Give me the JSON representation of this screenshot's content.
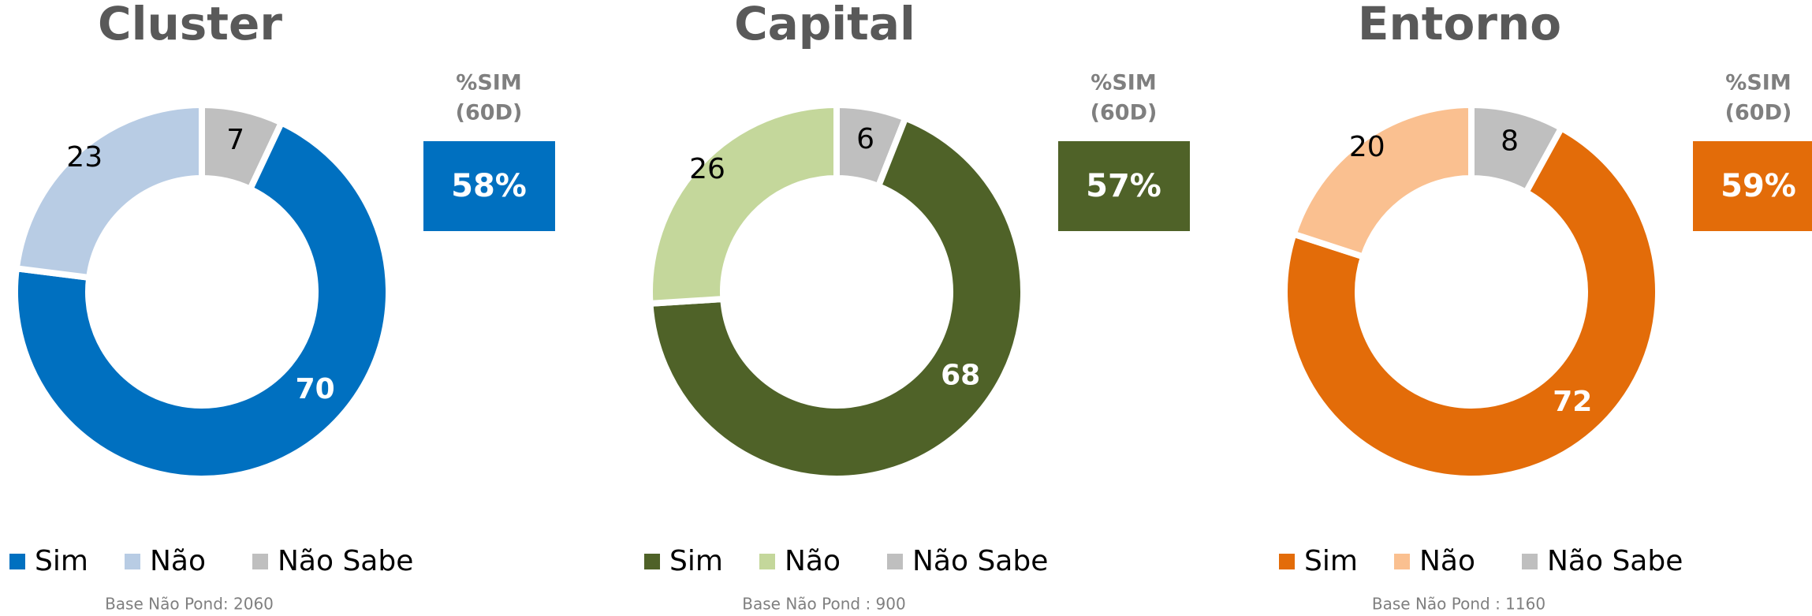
{
  "chart_data": [
    {
      "type": "donut",
      "title": "Cluster",
      "categories": [
        "Sim",
        "Não",
        "Não Sabe"
      ],
      "values": [
        70,
        23,
        7
      ],
      "colors": [
        "#0070C0",
        "#B8CCE4",
        "#BFBFBF"
      ],
      "kpi_label": [
        "%SIM",
        "(60D)"
      ],
      "kpi_value": 58,
      "kpi_value_label": "58%",
      "note": "Base Não Pond: 2060"
    },
    {
      "type": "donut",
      "title": "Capital",
      "categories": [
        "Sim",
        "Não",
        "Não Sabe"
      ],
      "values": [
        68,
        26,
        6
      ],
      "colors": [
        "#4F6228",
        "#C4D79B",
        "#BFBFBF"
      ],
      "kpi_label": [
        "%SIM",
        "(60D)"
      ],
      "kpi_value": 57,
      "kpi_value_label": "57%",
      "note": "Base Não Pond : 900"
    },
    {
      "type": "donut",
      "title": "Entorno",
      "categories": [
        "Sim",
        "Não",
        "Não Sabe"
      ],
      "values": [
        72,
        20,
        8
      ],
      "colors": [
        "#E36C09",
        "#FAC090",
        "#BFBFBF"
      ],
      "kpi_label": [
        "%SIM",
        "(60D)"
      ],
      "kpi_value": 59,
      "kpi_value_label": "59%",
      "note": "Base Não Pond : 1160"
    }
  ]
}
